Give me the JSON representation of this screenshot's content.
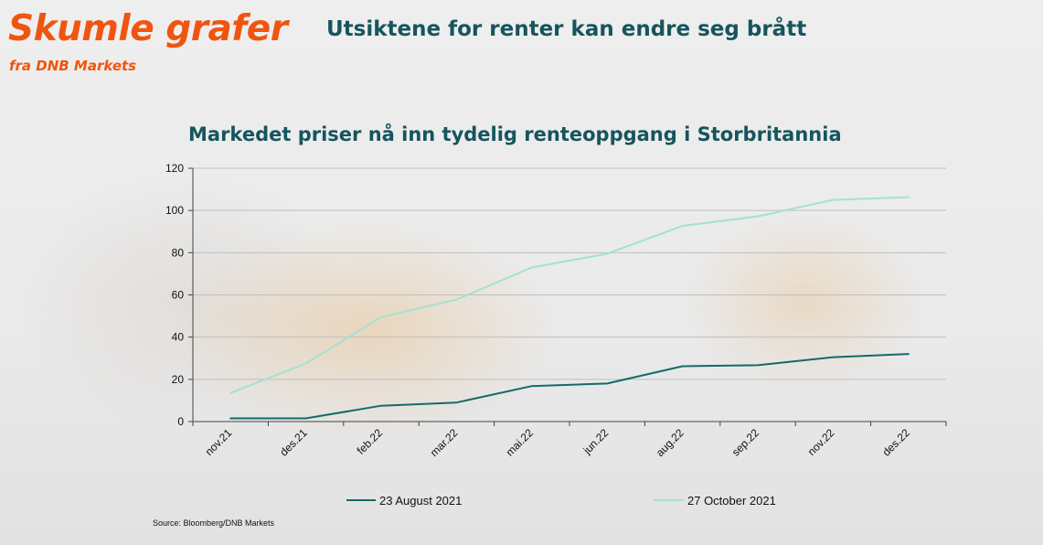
{
  "header": {
    "brand_title": "Skumle grafer",
    "brand_subtitle": "fra DNB Markets",
    "headline": "Utsiktene for renter kan endre seg brått"
  },
  "colors": {
    "brand_orange": "#f0550f",
    "heading_teal": "#16555d",
    "series_dark": "#136b68",
    "series_light": "#a3e2cf",
    "grid": "#bfbfbf"
  },
  "source": "Source: Bloomberg/DNB Markets",
  "chart_data": {
    "type": "line",
    "title": "Markedet priser nå inn tydelig renteoppgang i Storbritannia",
    "xlabel": "",
    "ylabel": "",
    "ylim": [
      0,
      120
    ],
    "yticks": [
      0,
      20,
      40,
      60,
      80,
      100,
      120
    ],
    "grid": true,
    "legend_position": "bottom",
    "categories": [
      "nov.21",
      "des.21",
      "feb.22",
      "mar.22",
      "mai.22",
      "jun.22",
      "aug.22",
      "sep.22",
      "nov.22",
      "des.22"
    ],
    "series": [
      {
        "name": "23 August 2021",
        "color": "#136b68",
        "values": [
          1.5,
          1.5,
          7.5,
          9,
          16.8,
          18,
          26.2,
          26.7,
          30.5,
          32
        ]
      },
      {
        "name": "27 October 2021",
        "color": "#a3e2cf",
        "values": [
          13.5,
          27.5,
          49.5,
          57.8,
          73,
          79.5,
          92.7,
          97.2,
          105,
          106.3
        ]
      }
    ]
  }
}
